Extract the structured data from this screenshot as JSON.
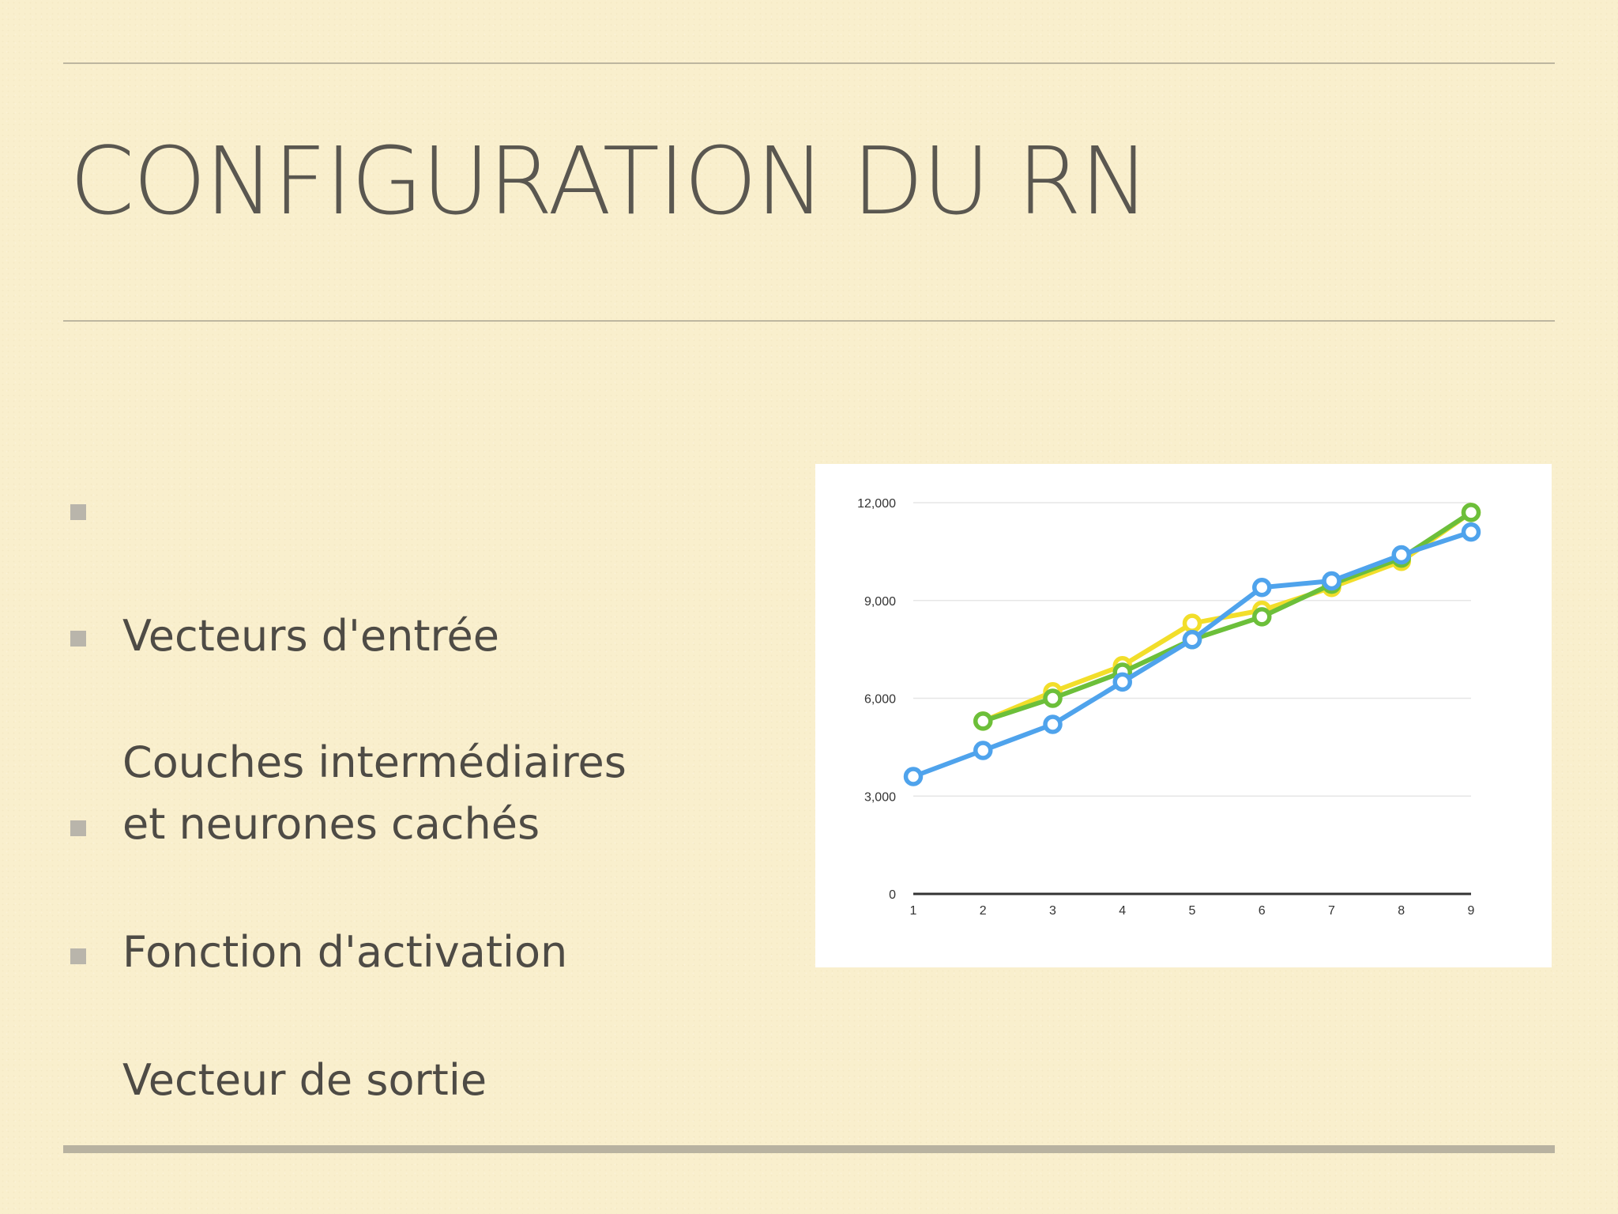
{
  "slide": {
    "title": "CONFIGURATION DU RN",
    "bullets": [
      "Vecteurs d'entrée",
      "Couches intermédiaires\net neurones cachés",
      "Fonction d'activation",
      "Vecteur de sortie"
    ]
  },
  "colors": {
    "background": "#f9efcd",
    "title_text": "#5a5750",
    "bullet_marker": "#b9b5ab",
    "series_yellow": "#f2de2a",
    "series_green": "#6cbf3a",
    "series_blue": "#4fa3ec"
  },
  "chart_data": {
    "type": "line",
    "title": "",
    "xlabel": "",
    "ylabel": "",
    "x": [
      1,
      2,
      3,
      4,
      5,
      6,
      7,
      8,
      9
    ],
    "xlim": [
      1,
      9
    ],
    "ylim": [
      0,
      12000
    ],
    "yticks": [
      0,
      3000,
      6000,
      9000,
      12000
    ],
    "ytick_labels": [
      "0",
      "3,000",
      "6,000",
      "9,000",
      "12,000"
    ],
    "xtick_labels": [
      "1",
      "2",
      "3",
      "4",
      "5",
      "6",
      "7",
      "8",
      "9"
    ],
    "grid": true,
    "legend": "none",
    "series": [
      {
        "color": "#f2de2a",
        "values": [
          null,
          5300,
          6200,
          7000,
          8300,
          8700,
          9400,
          10200,
          11700
        ]
      },
      {
        "color": "#6cbf3a",
        "values": [
          null,
          5300,
          6000,
          6800,
          7800,
          8500,
          9500,
          10300,
          11700
        ]
      },
      {
        "color": "#4fa3ec",
        "values": [
          3600,
          4400,
          5200,
          6500,
          7800,
          9400,
          9600,
          10400,
          11100
        ]
      }
    ]
  }
}
